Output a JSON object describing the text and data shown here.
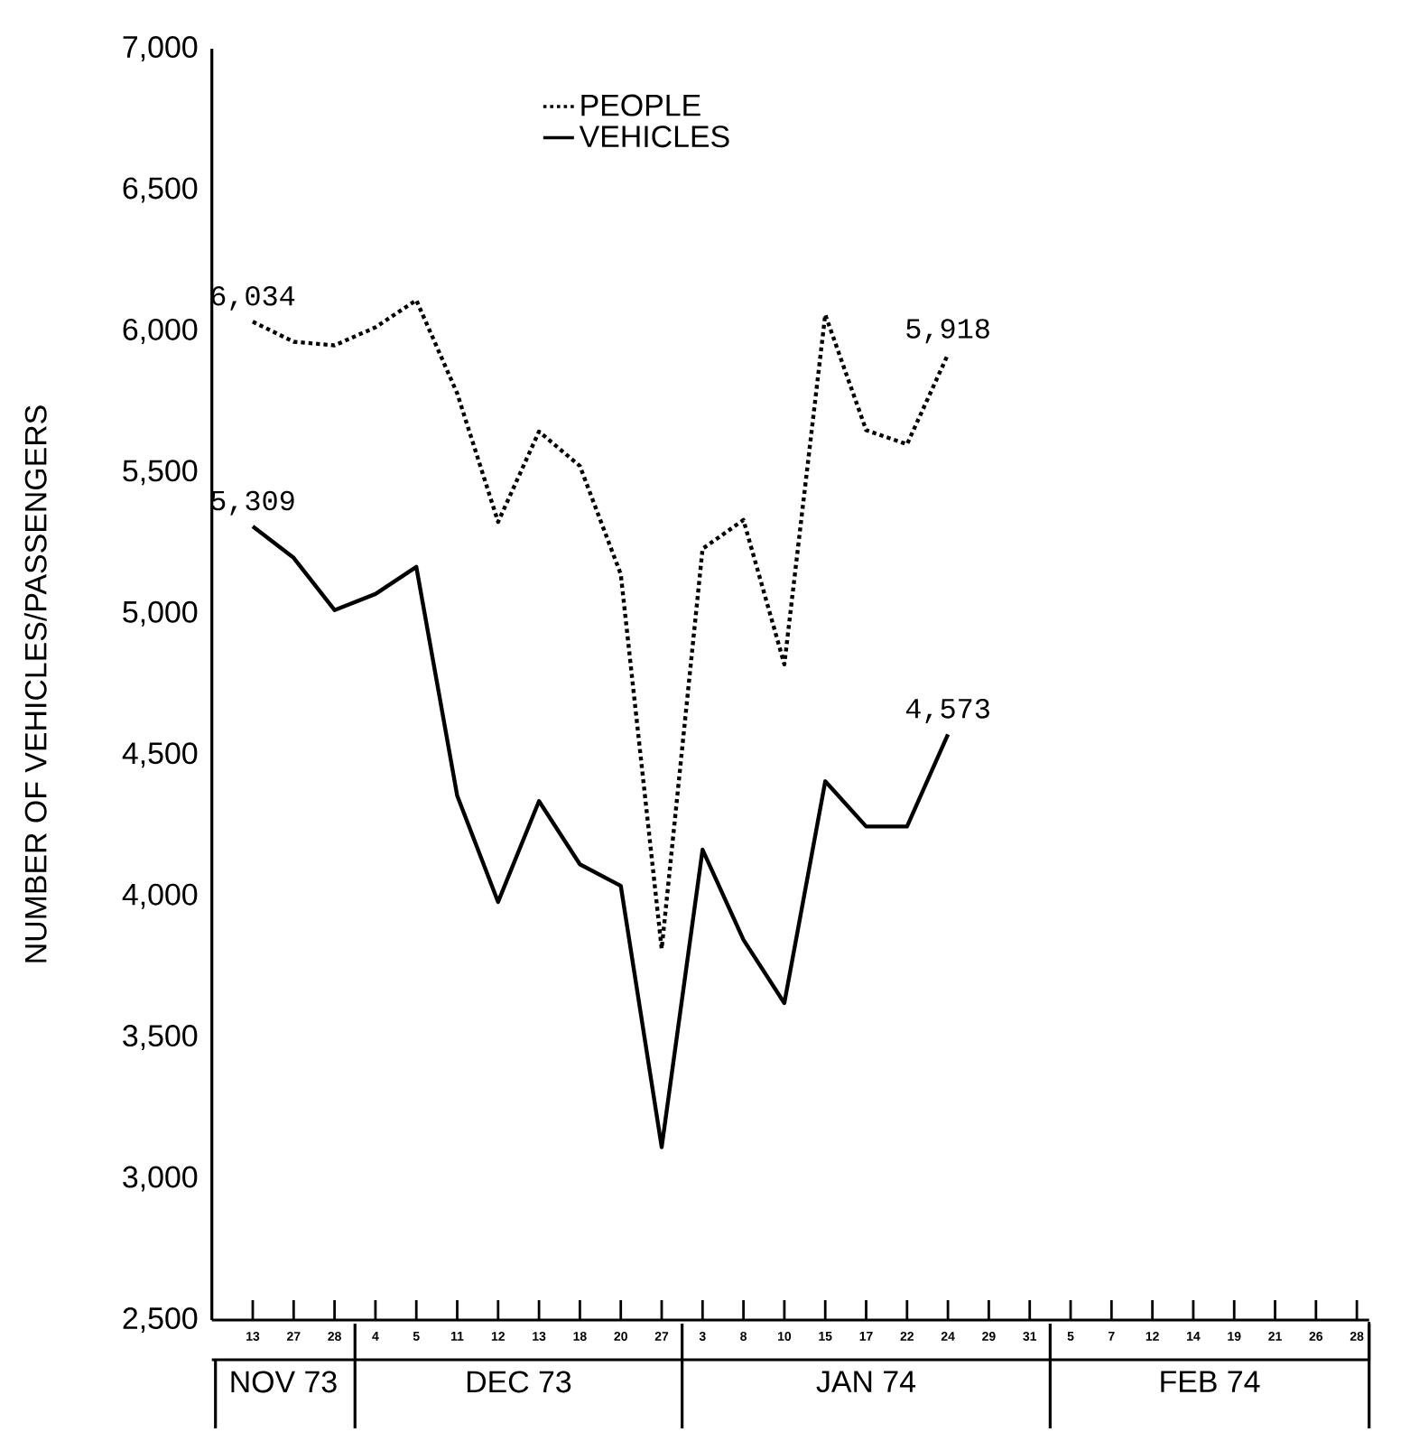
{
  "chart_data": {
    "type": "line",
    "ylabel": "NUMBER OF VEHICLES/PASSENGERS",
    "categories": [
      "13",
      "27",
      "28",
      "4",
      "5",
      "11",
      "12",
      "13",
      "18",
      "20",
      "27",
      "3",
      "8",
      "10",
      "15",
      "17",
      "22",
      "24",
      "29",
      "31",
      "5",
      "7",
      "12",
      "14",
      "19",
      "21",
      "26",
      "28"
    ],
    "series": [
      {
        "name": "PEOPLE",
        "color": "#000000",
        "line_style": "dotted",
        "values": [
          6034,
          5963,
          5950,
          6014,
          6110,
          5780,
          5325,
          5645,
          5523,
          5140,
          3814,
          5230,
          5332,
          4821,
          6059,
          5650,
          5600,
          5918,
          null,
          null,
          null,
          null,
          null,
          null,
          null,
          null,
          null,
          null
        ],
        "value_labels": [
          "6,034",
          null,
          null,
          null,
          null,
          null,
          null,
          null,
          null,
          null,
          null,
          null,
          null,
          null,
          null,
          null,
          null,
          "5,918",
          null,
          null,
          null,
          null,
          null,
          null,
          null,
          null,
          null,
          null
        ]
      },
      {
        "name": "VEHICLES",
        "color": "#000000",
        "line_style": "solid",
        "values": [
          5309,
          5198,
          5013,
          5070,
          5166,
          4356,
          3980,
          4337,
          4113,
          4037,
          3112,
          4165,
          3846,
          3622,
          4407,
          4247,
          4247,
          4573,
          null,
          null,
          null,
          null,
          null,
          null,
          null,
          null,
          null,
          null
        ],
        "value_labels": [
          "5,309",
          null,
          null,
          null,
          null,
          null,
          null,
          null,
          null,
          null,
          null,
          null,
          null,
          null,
          null,
          null,
          null,
          "4,573",
          null,
          null,
          null,
          null,
          null,
          null,
          null,
          null,
          null,
          null
        ]
      }
    ],
    "ylim": [
      2500,
      7000
    ],
    "yticks": [
      {
        "value": 2500,
        "label": "2,500"
      },
      {
        "value": 3000,
        "label": "3,000"
      },
      {
        "value": 3500,
        "label": "3,500"
      },
      {
        "value": 4000,
        "label": "4,000"
      },
      {
        "value": 4500,
        "label": "4,500"
      },
      {
        "value": 5000,
        "label": "5,000"
      },
      {
        "value": 5500,
        "label": "5,500"
      },
      {
        "value": 6000,
        "label": "6,000"
      },
      {
        "value": 6500,
        "label": "6,500"
      },
      {
        "value": 7000,
        "label": "7,000"
      }
    ],
    "annotations": [
      "NOV 73",
      "DEC 73",
      "JAN 74",
      "FEB 74"
    ],
    "legend": "top",
    "marker": "none",
    "grid": false
  }
}
